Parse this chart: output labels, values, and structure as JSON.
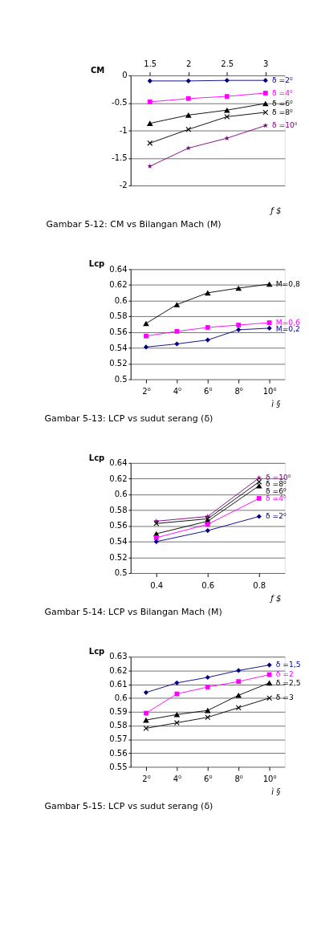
{
  "chart_data": [
    {
      "type": "line",
      "title": "Gambar 5-12: CM vs Bilangan Mach (M)",
      "ylabel": "CM",
      "xlabel": "ƒ $",
      "categories": [
        "1.5",
        "2",
        "2.5",
        "3"
      ],
      "ylim": [
        -2,
        0
      ],
      "yticks": [
        -2,
        -1.5,
        -1,
        -0.5,
        0
      ],
      "grid": "y",
      "series": [
        {
          "name": "δ =2⁰",
          "color": "#000080",
          "marker": "diamond",
          "values": [
            -0.1,
            -0.1,
            -0.09,
            -0.09
          ]
        },
        {
          "name": "δ =4⁰",
          "color": "#ff00ff",
          "marker": "square",
          "values": [
            -0.48,
            -0.42,
            -0.38,
            -0.32
          ]
        },
        {
          "name": "δ =6⁰",
          "color": "#000000",
          "marker": "triangle",
          "values": [
            -0.87,
            -0.72,
            -0.63,
            -0.51
          ]
        },
        {
          "name": "δ =8⁰",
          "color": "#000000",
          "marker": "cross",
          "values": [
            -1.23,
            -0.98,
            -0.75,
            -0.67
          ]
        },
        {
          "name": "δ =10⁰",
          "color": "#800080",
          "marker": "star",
          "values": [
            -1.65,
            -1.32,
            -1.14,
            -0.91
          ]
        }
      ]
    },
    {
      "type": "line",
      "title": "Gambar 5-13: LCP vs sudut serang (δ)",
      "ylabel": "Lcp",
      "xlabel": "ì §",
      "categories": [
        "2⁰",
        "4⁰",
        "6⁰",
        "8⁰",
        "10⁰"
      ],
      "ylim": [
        0.5,
        0.64
      ],
      "yticks": [
        0.5,
        0.52,
        0.54,
        0.56,
        0.58,
        0.6,
        0.62,
        0.64
      ],
      "grid": "y",
      "series": [
        {
          "name": "M=0,8",
          "color": "#000000",
          "marker": "triangle",
          "values": [
            0.571,
            0.595,
            0.61,
            0.616,
            0.621
          ]
        },
        {
          "name": "M=0,6",
          "color": "#ff00ff",
          "marker": "square",
          "values": [
            0.555,
            0.561,
            0.566,
            0.569,
            0.572
          ]
        },
        {
          "name": "M=0,2",
          "color": "#000080",
          "marker": "diamond",
          "values": [
            0.541,
            0.545,
            0.55,
            0.563,
            0.565
          ]
        }
      ]
    },
    {
      "type": "line",
      "title": "Gambar 5-14: LCP vs Bilangan Mach (M)",
      "ylabel": "Lcp",
      "xlabel": "ƒ $",
      "categories": [
        "0.4",
        "0.6",
        "0.8"
      ],
      "ylim": [
        0.5,
        0.64
      ],
      "yticks": [
        0.5,
        0.52,
        0.54,
        0.56,
        0.58,
        0.6,
        0.62,
        0.64
      ],
      "grid": "y",
      "series": [
        {
          "name": "δ =10⁰",
          "color": "#800080",
          "marker": "star",
          "values": [
            0.566,
            0.572,
            0.621
          ]
        },
        {
          "name": "δ =8⁰",
          "color": "#000000",
          "marker": "cross",
          "values": [
            0.563,
            0.569,
            0.616
          ]
        },
        {
          "name": "δ =6⁰",
          "color": "#000000",
          "marker": "triangle",
          "values": [
            0.55,
            0.566,
            0.611
          ]
        },
        {
          "name": "δ =4⁰",
          "color": "#ff00ff",
          "marker": "square",
          "values": [
            0.545,
            0.562,
            0.595
          ]
        },
        {
          "name": "δ =2⁰",
          "color": "#000080",
          "marker": "diamond",
          "values": [
            0.54,
            0.554,
            0.572
          ]
        }
      ]
    },
    {
      "type": "line",
      "title": "Gambar 5-15: LCP vs sudut serang (δ)",
      "ylabel": "Lcp",
      "xlabel": "ì §",
      "categories": [
        "2⁰",
        "4⁰",
        "6⁰",
        "8⁰",
        "10⁰"
      ],
      "ylim": [
        0.55,
        0.63
      ],
      "yticks": [
        0.55,
        0.56,
        0.57,
        0.58,
        0.59,
        0.6,
        0.61,
        0.62,
        0.63
      ],
      "grid": "y",
      "series": [
        {
          "name": "δ =1,5",
          "color": "#000080",
          "marker": "diamond",
          "values": [
            0.604,
            0.611,
            0.615,
            0.62,
            0.624
          ]
        },
        {
          "name": "δ =2",
          "color": "#ff00ff",
          "marker": "square",
          "values": [
            0.589,
            0.603,
            0.608,
            0.612,
            0.617
          ]
        },
        {
          "name": "δ =2,5",
          "color": "#000000",
          "marker": "triangle",
          "values": [
            0.584,
            0.588,
            0.591,
            0.602,
            0.611
          ]
        },
        {
          "name": "δ =3",
          "color": "#000000",
          "marker": "cross",
          "values": [
            0.578,
            0.582,
            0.586,
            0.593,
            0.6
          ]
        }
      ]
    }
  ]
}
